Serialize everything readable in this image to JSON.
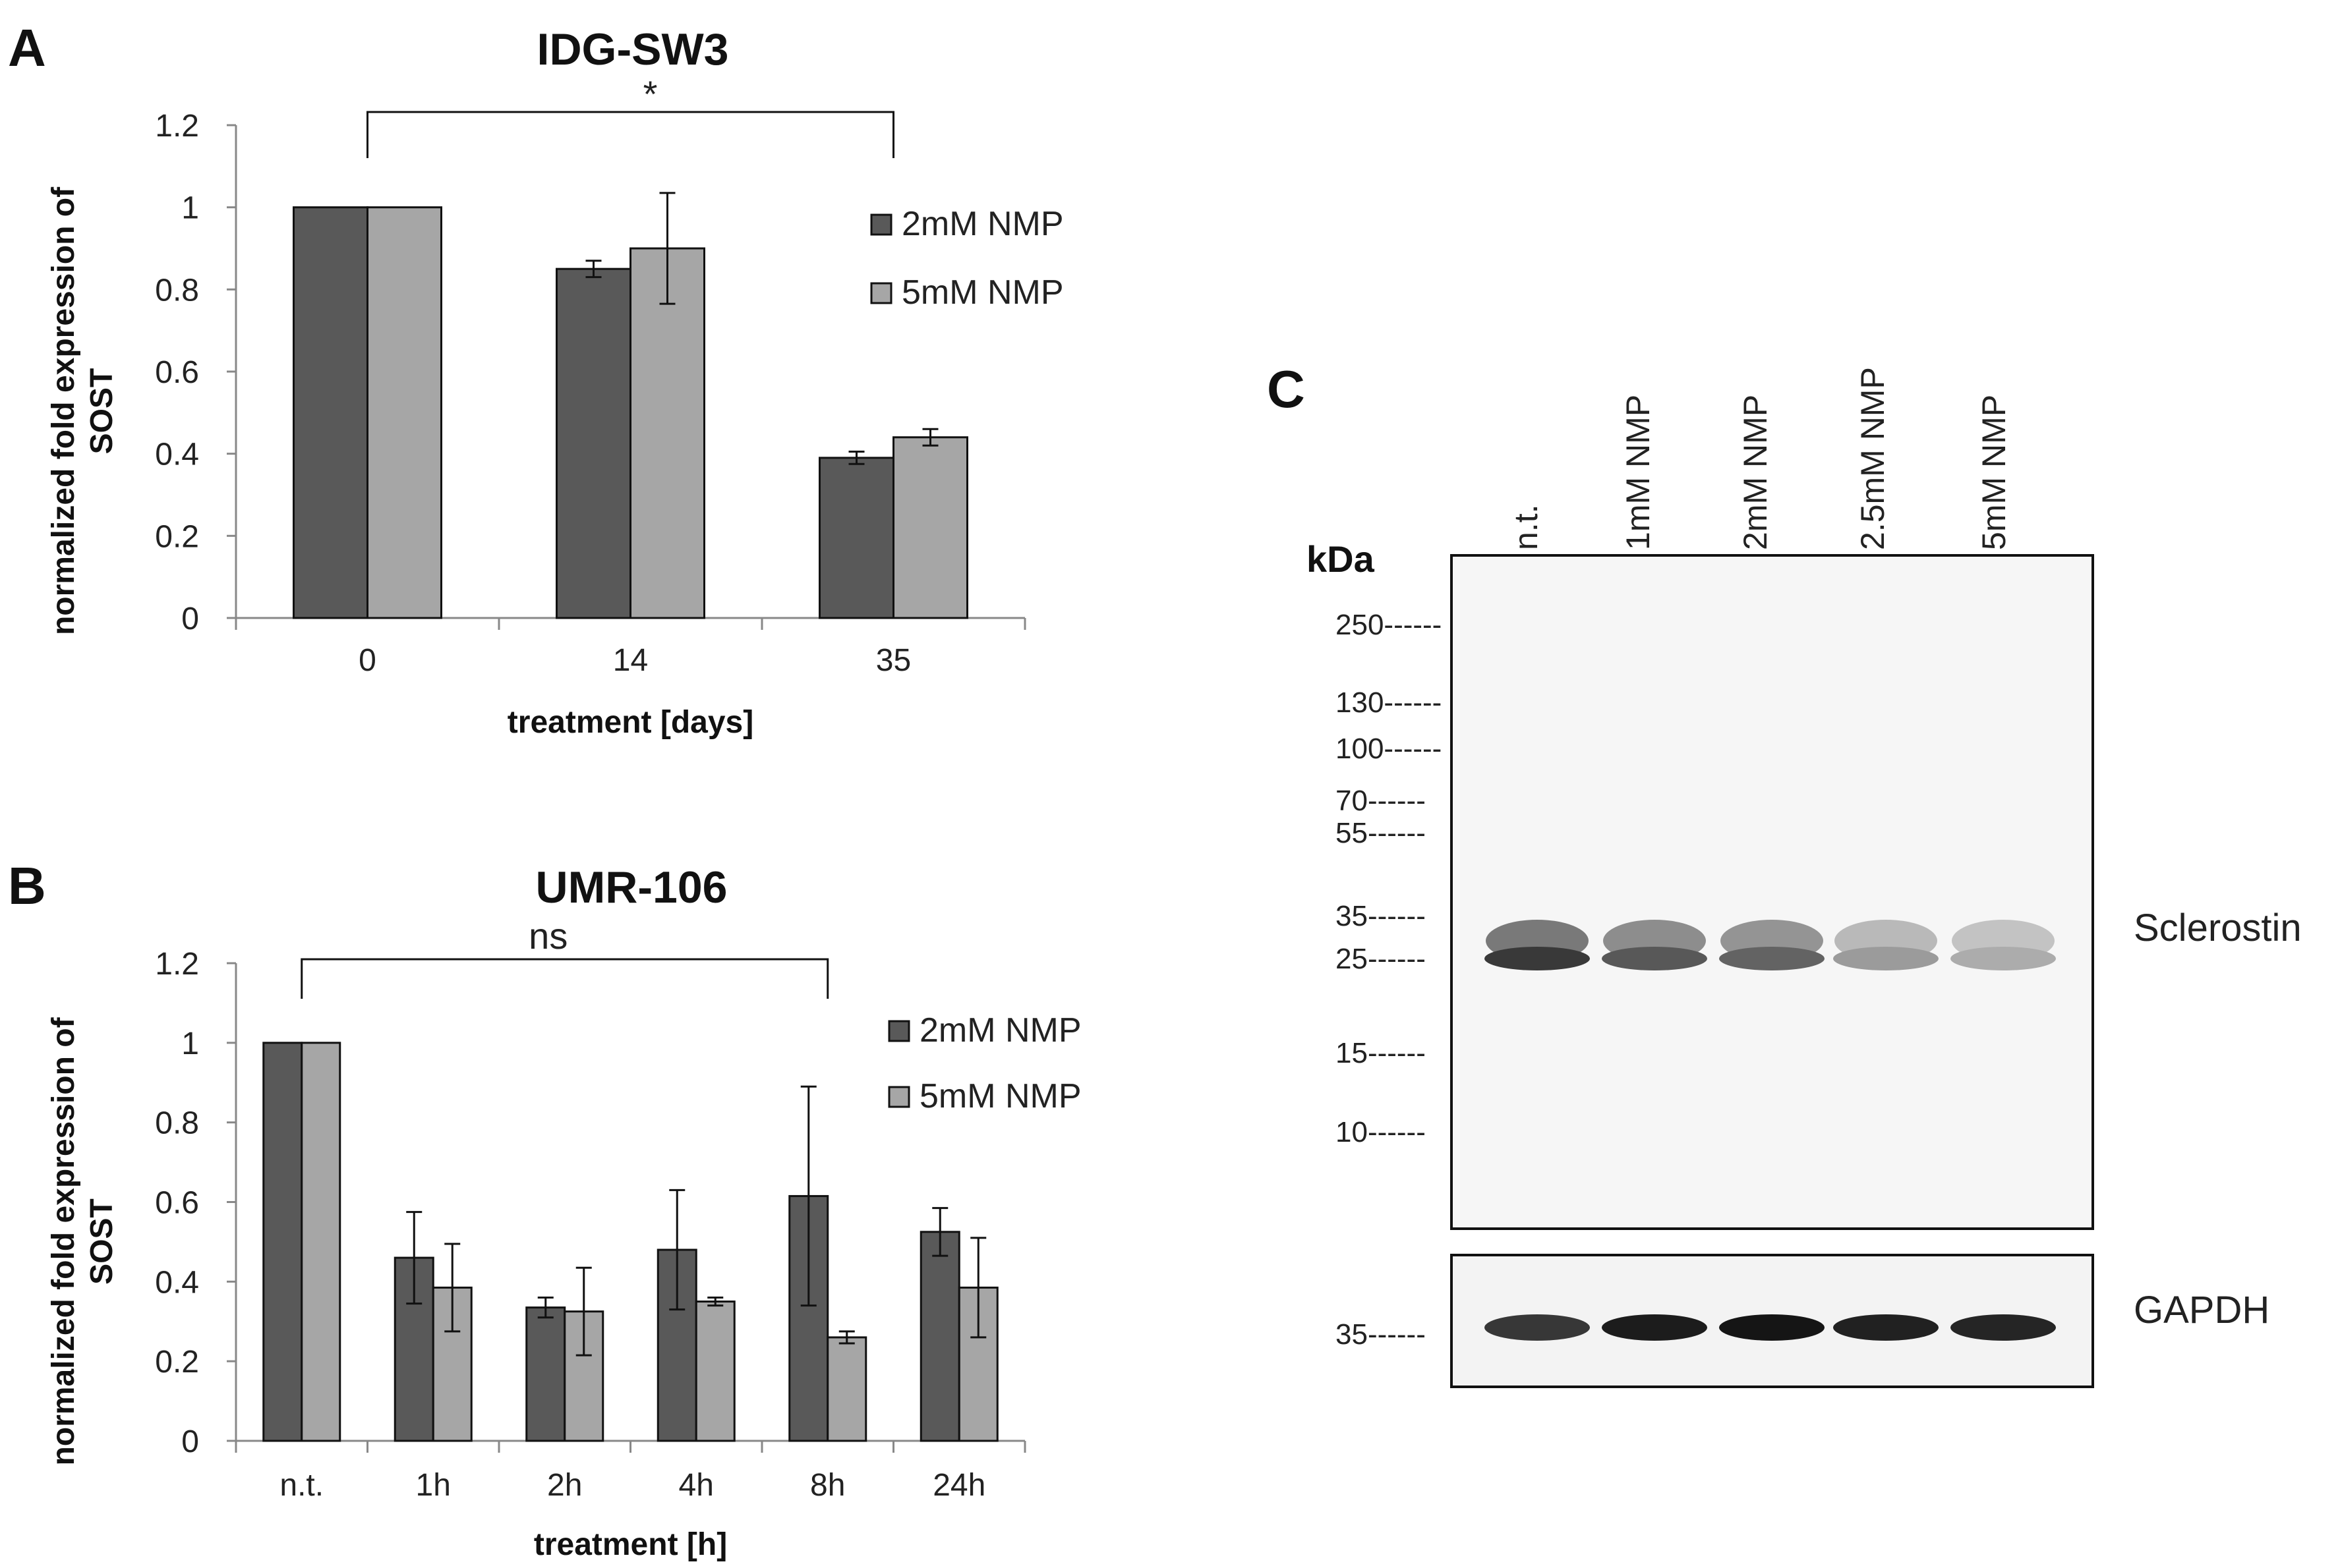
{
  "chart_data": [
    {
      "panel": "A",
      "type": "bar",
      "title": "IDG-SW3",
      "xlabel": "treatment [days]",
      "ylabel": [
        "normalized fold expression of",
        "SOST"
      ],
      "ylim": [
        0,
        1.2
      ],
      "yticks": [
        "0",
        "0.2",
        "0.4",
        "0.6",
        "0.8",
        "1",
        "1.2"
      ],
      "categories": [
        "0",
        "14",
        "35"
      ],
      "series": [
        {
          "name": "2mM NMP",
          "color": "#595959",
          "values": [
            1.0,
            0.85,
            0.39
          ],
          "errors": [
            0,
            0.02,
            0.015
          ]
        },
        {
          "name": "5mM NMP",
          "color": "#a6a6a6",
          "values": [
            1.0,
            0.9,
            0.44
          ],
          "errors": [
            0,
            0.135,
            0.02
          ]
        }
      ],
      "significance": {
        "label": "*",
        "from": 0,
        "to": 2,
        "height": 1.23
      }
    },
    {
      "panel": "B",
      "type": "bar",
      "title": "UMR-106",
      "xlabel": "treatment [h]",
      "ylabel": [
        "normalized fold expression of",
        "SOST"
      ],
      "ylim": [
        0,
        1.2
      ],
      "yticks": [
        "0",
        "0.2",
        "0.4",
        "0.6",
        "0.8",
        "1",
        "1.2"
      ],
      "categories": [
        "n.t.",
        "1h",
        "2h",
        "4h",
        "8h",
        "24h"
      ],
      "series": [
        {
          "name": "2mM NMP",
          "color": "#595959",
          "values": [
            1.0,
            0.46,
            0.335,
            0.48,
            0.615,
            0.525
          ],
          "errors": [
            0,
            0.115,
            0.025,
            0.15,
            0.275,
            0.06
          ]
        },
        {
          "name": "5mM NMP",
          "color": "#a6a6a6",
          "values": [
            1.0,
            0.385,
            0.325,
            0.35,
            0.26,
            0.385
          ],
          "errors": [
            0,
            0.11,
            0.11,
            0.01,
            0.015,
            0.125
          ]
        }
      ],
      "significance": {
        "label": "ns",
        "from": 0,
        "to": 4,
        "height": 1.1
      }
    }
  ],
  "blot": {
    "panel": "C",
    "kda_label": "kDa",
    "lanes": [
      "n.t.",
      "1mM NMP",
      "2mM NMP",
      "2.5mM NMP",
      "5mM NMP"
    ],
    "markers": [
      "250------",
      "130------",
      "100------",
      "70------",
      "55------",
      "35------",
      "25------",
      "15------",
      "10------"
    ],
    "marker_values": [
      250,
      130,
      100,
      70,
      55,
      35,
      25,
      15,
      10
    ],
    "band_label": "Sclerostin",
    "band_intensity": [
      0.85,
      0.7,
      0.65,
      0.38,
      0.3
    ],
    "gapdh_label": "GAPDH",
    "gapdh_marker": "35------",
    "gapdh_intensity": [
      0.8,
      0.92,
      0.95,
      0.9,
      0.88
    ]
  }
}
